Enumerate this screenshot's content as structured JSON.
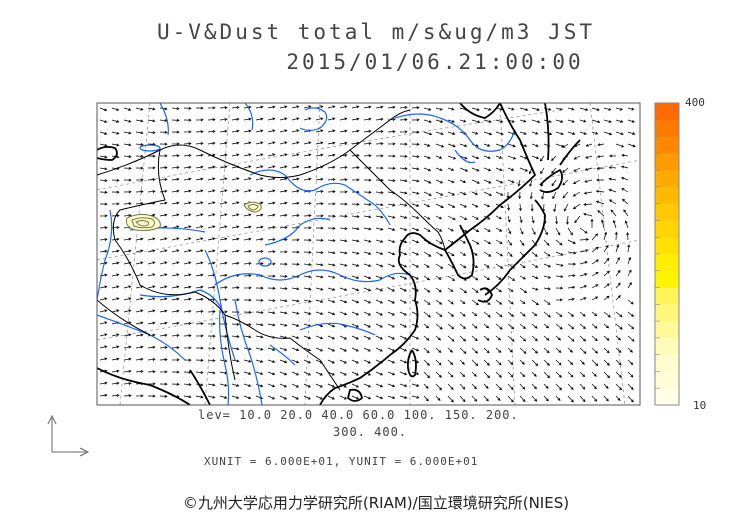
{
  "title": {
    "line1": "U-V&Dust total m/s&ug/m3 JST",
    "line2": "2015/01/06.21:00:00"
  },
  "colorbar": {
    "max_label": "400",
    "min_label": "10",
    "colors": [
      "#ff6a00",
      "#ff7a00",
      "#ff8800",
      "#ff9a00",
      "#ffaa00",
      "#ffba00",
      "#ffc800",
      "#ffd400",
      "#ffe000",
      "#ffee00",
      "#fff300",
      "#fff55a",
      "#fff77a",
      "#fff99a",
      "#fffbb8",
      "#fffcd0",
      "#fffdd8",
      "#fffee6"
    ]
  },
  "levels": {
    "line1": "lev= 10.0 20.0 40.0 60.0 100. 150. 200.",
    "line2": "300. 400."
  },
  "units": "XUNIT = 6.000E+01, YUNIT = 6.000E+01",
  "credit": "©九州大学応用力学研究所(RIAM)/国立環境研究所(NIES)",
  "map_style": {
    "coast_color": "#000000",
    "border_color": "#000000",
    "river_color": "#1a66ff",
    "grid_color": "#999999",
    "vector_color": "#000000",
    "dust_outline_color": "#777744",
    "dust_fill_color": "#fffcd0"
  }
}
